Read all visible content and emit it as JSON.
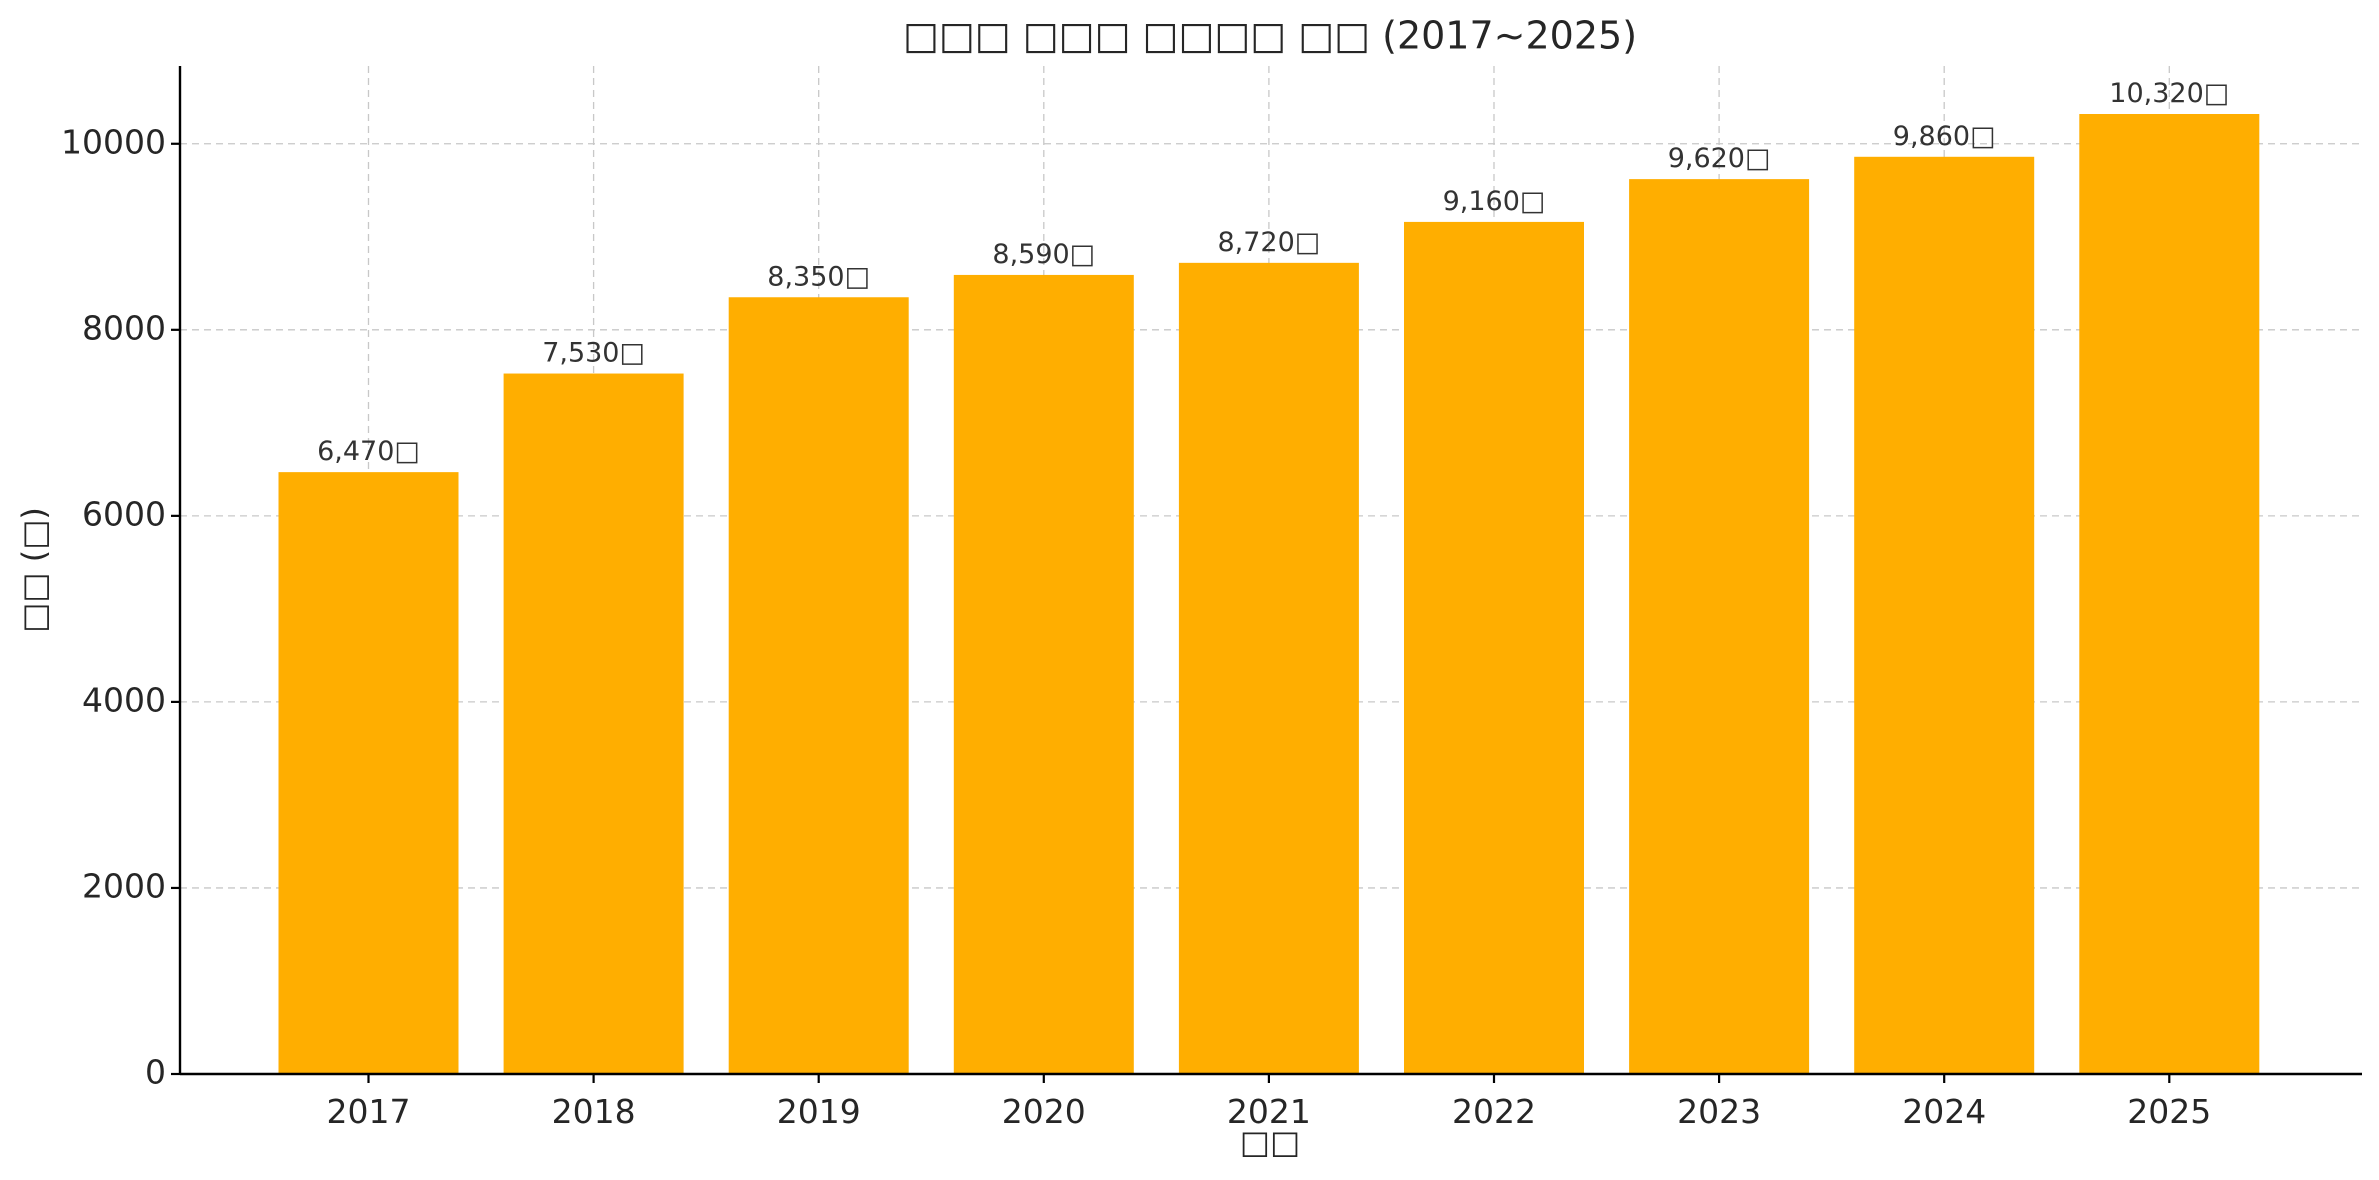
{
  "chart_data": {
    "type": "bar",
    "title": "□□□ □□□ □□□□ □□ (2017~2025)",
    "xlabel": "□□",
    "ylabel": "□□ (□)",
    "categories": [
      "2017",
      "2018",
      "2019",
      "2020",
      "2021",
      "2022",
      "2023",
      "2024",
      "2025"
    ],
    "values": [
      6470,
      7530,
      8350,
      8590,
      8720,
      9160,
      9620,
      9860,
      10320
    ],
    "data_labels": [
      "6,470□",
      "7,530□",
      "8,350□",
      "8,590□",
      "8,720□",
      "9,160□",
      "9,620□",
      "9,860□",
      "10,320□"
    ],
    "ylim": [
      0,
      10836
    ],
    "yticks": [
      0,
      2000,
      4000,
      6000,
      8000,
      10000
    ],
    "ytick_labels": [
      "0",
      "2000",
      "4000",
      "6000",
      "8000",
      "10000"
    ],
    "grid": true,
    "legend": "none",
    "bar_color": "#FFAE00"
  }
}
